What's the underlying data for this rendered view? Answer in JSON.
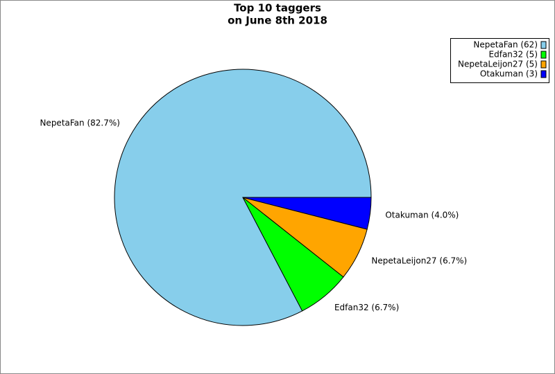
{
  "chart_data": {
    "type": "pie",
    "title": "Top 10 taggers",
    "subtitle": "on June 8th 2018",
    "categories": [
      "NepetaFan (62)",
      "Edfan32 (5)",
      "NepetaLeijon27 (5)",
      "Otakuman (3)"
    ],
    "values": [
      62,
      5,
      5,
      3
    ],
    "slice_labels": [
      "NepetaFan (82.7%)",
      "Edfan32 (6.7%)",
      "NepetaLeijon27 (6.7%)",
      "Otakuman (4.0%)"
    ],
    "colors": [
      "#87ceeb",
      "#00ff00",
      "#ffa500",
      "#0000ff"
    ],
    "legend": "top-right"
  }
}
